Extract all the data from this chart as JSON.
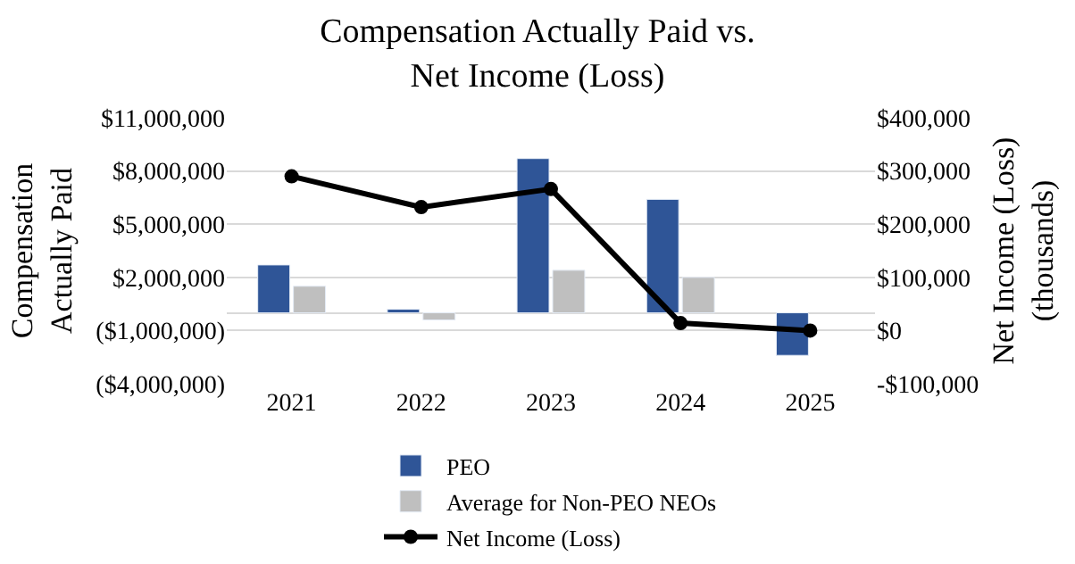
{
  "chart_data": {
    "type": "bar",
    "title": "Compensation Actually Paid vs.\nNet Income (Loss)",
    "ylabel": "Compensation\nActually Paid",
    "y2label": "Net Income (Loss)\n(thousands)",
    "categories": [
      "2021",
      "2022",
      "2023",
      "2024",
      "2025"
    ],
    "series": [
      {
        "name": "PEO",
        "color": "#2f5597",
        "values": [
          2700000,
          200000,
          8700000,
          6400000,
          -2400000
        ]
      },
      {
        "name": "Average for Non-PEO NEOs",
        "color": "#bfbfbf",
        "values": [
          1500000,
          -400000,
          2400000,
          2000000,
          null
        ]
      },
      {
        "name": "Net Income (Loss)",
        "type": "line",
        "axis": "y2",
        "color": "#000000",
        "marker": "circle",
        "values": [
          290000,
          232000,
          266000,
          14000,
          0
        ]
      }
    ],
    "ylim": [
      -4000000,
      11000000
    ],
    "yticks": [
      {
        "value": -4000000,
        "label": "($4,000,000)"
      },
      {
        "value": -1000000,
        "label": "($1,000,000)"
      },
      {
        "value": 2000000,
        "label": "$2,000,000"
      },
      {
        "value": 5000000,
        "label": "$5,000,000"
      },
      {
        "value": 8000000,
        "label": "$8,000,000"
      },
      {
        "value": 11000000,
        "label": "$11,000,000"
      }
    ],
    "y2lim": [
      -100000,
      400000
    ],
    "y2ticks": [
      {
        "value": -100000,
        "label": "-$100,000"
      },
      {
        "value": 0,
        "label": "$0"
      },
      {
        "value": 100000,
        "label": "$100,000"
      },
      {
        "value": 200000,
        "label": "$200,000"
      },
      {
        "value": 300000,
        "label": "$300,000"
      },
      {
        "value": 400000,
        "label": "$400,000"
      }
    ],
    "grid": "y",
    "legend": "bottom"
  }
}
